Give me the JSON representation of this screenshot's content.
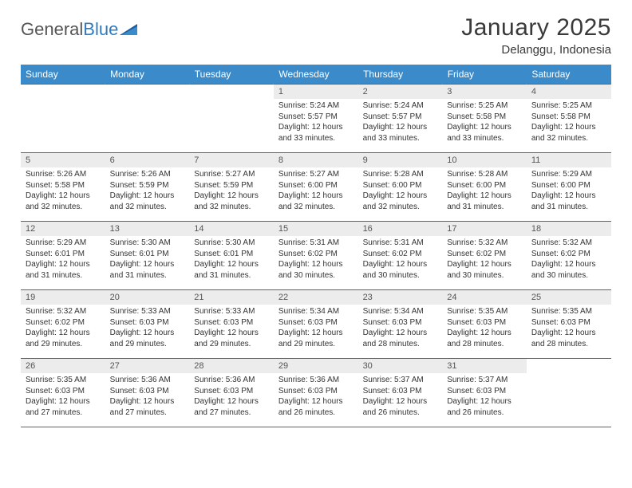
{
  "logo": {
    "word1": "General",
    "word2": "Blue"
  },
  "header": {
    "title": "January 2025",
    "location": "Delanggu, Indonesia"
  },
  "colors": {
    "header_bg": "#3b8bca",
    "header_text": "#ffffff",
    "row_divider": "#2f6fa8",
    "daynum_bg": "#ececec",
    "page_bg": "#ffffff",
    "logo_blue": "#2f7bbf",
    "text": "#333333"
  },
  "typography": {
    "title_fontsize": 30,
    "subtitle_fontsize": 15,
    "dayheader_fontsize": 12,
    "daynum_fontsize": 11,
    "info_fontsize": 10
  },
  "calendar": {
    "type": "table",
    "columns": [
      "Sunday",
      "Monday",
      "Tuesday",
      "Wednesday",
      "Thursday",
      "Friday",
      "Saturday"
    ],
    "start_day_index": 3,
    "days": [
      {
        "n": 1,
        "sunrise": "5:24 AM",
        "sunset": "5:57 PM",
        "daylight": "12 hours and 33 minutes."
      },
      {
        "n": 2,
        "sunrise": "5:24 AM",
        "sunset": "5:57 PM",
        "daylight": "12 hours and 33 minutes."
      },
      {
        "n": 3,
        "sunrise": "5:25 AM",
        "sunset": "5:58 PM",
        "daylight": "12 hours and 33 minutes."
      },
      {
        "n": 4,
        "sunrise": "5:25 AM",
        "sunset": "5:58 PM",
        "daylight": "12 hours and 32 minutes."
      },
      {
        "n": 5,
        "sunrise": "5:26 AM",
        "sunset": "5:58 PM",
        "daylight": "12 hours and 32 minutes."
      },
      {
        "n": 6,
        "sunrise": "5:26 AM",
        "sunset": "5:59 PM",
        "daylight": "12 hours and 32 minutes."
      },
      {
        "n": 7,
        "sunrise": "5:27 AM",
        "sunset": "5:59 PM",
        "daylight": "12 hours and 32 minutes."
      },
      {
        "n": 8,
        "sunrise": "5:27 AM",
        "sunset": "6:00 PM",
        "daylight": "12 hours and 32 minutes."
      },
      {
        "n": 9,
        "sunrise": "5:28 AM",
        "sunset": "6:00 PM",
        "daylight": "12 hours and 32 minutes."
      },
      {
        "n": 10,
        "sunrise": "5:28 AM",
        "sunset": "6:00 PM",
        "daylight": "12 hours and 31 minutes."
      },
      {
        "n": 11,
        "sunrise": "5:29 AM",
        "sunset": "6:00 PM",
        "daylight": "12 hours and 31 minutes."
      },
      {
        "n": 12,
        "sunrise": "5:29 AM",
        "sunset": "6:01 PM",
        "daylight": "12 hours and 31 minutes."
      },
      {
        "n": 13,
        "sunrise": "5:30 AM",
        "sunset": "6:01 PM",
        "daylight": "12 hours and 31 minutes."
      },
      {
        "n": 14,
        "sunrise": "5:30 AM",
        "sunset": "6:01 PM",
        "daylight": "12 hours and 31 minutes."
      },
      {
        "n": 15,
        "sunrise": "5:31 AM",
        "sunset": "6:02 PM",
        "daylight": "12 hours and 30 minutes."
      },
      {
        "n": 16,
        "sunrise": "5:31 AM",
        "sunset": "6:02 PM",
        "daylight": "12 hours and 30 minutes."
      },
      {
        "n": 17,
        "sunrise": "5:32 AM",
        "sunset": "6:02 PM",
        "daylight": "12 hours and 30 minutes."
      },
      {
        "n": 18,
        "sunrise": "5:32 AM",
        "sunset": "6:02 PM",
        "daylight": "12 hours and 30 minutes."
      },
      {
        "n": 19,
        "sunrise": "5:32 AM",
        "sunset": "6:02 PM",
        "daylight": "12 hours and 29 minutes."
      },
      {
        "n": 20,
        "sunrise": "5:33 AM",
        "sunset": "6:03 PM",
        "daylight": "12 hours and 29 minutes."
      },
      {
        "n": 21,
        "sunrise": "5:33 AM",
        "sunset": "6:03 PM",
        "daylight": "12 hours and 29 minutes."
      },
      {
        "n": 22,
        "sunrise": "5:34 AM",
        "sunset": "6:03 PM",
        "daylight": "12 hours and 29 minutes."
      },
      {
        "n": 23,
        "sunrise": "5:34 AM",
        "sunset": "6:03 PM",
        "daylight": "12 hours and 28 minutes."
      },
      {
        "n": 24,
        "sunrise": "5:35 AM",
        "sunset": "6:03 PM",
        "daylight": "12 hours and 28 minutes."
      },
      {
        "n": 25,
        "sunrise": "5:35 AM",
        "sunset": "6:03 PM",
        "daylight": "12 hours and 28 minutes."
      },
      {
        "n": 26,
        "sunrise": "5:35 AM",
        "sunset": "6:03 PM",
        "daylight": "12 hours and 27 minutes."
      },
      {
        "n": 27,
        "sunrise": "5:36 AM",
        "sunset": "6:03 PM",
        "daylight": "12 hours and 27 minutes."
      },
      {
        "n": 28,
        "sunrise": "5:36 AM",
        "sunset": "6:03 PM",
        "daylight": "12 hours and 27 minutes."
      },
      {
        "n": 29,
        "sunrise": "5:36 AM",
        "sunset": "6:03 PM",
        "daylight": "12 hours and 26 minutes."
      },
      {
        "n": 30,
        "sunrise": "5:37 AM",
        "sunset": "6:03 PM",
        "daylight": "12 hours and 26 minutes."
      },
      {
        "n": 31,
        "sunrise": "5:37 AM",
        "sunset": "6:03 PM",
        "daylight": "12 hours and 26 minutes."
      }
    ],
    "labels": {
      "sunrise": "Sunrise:",
      "sunset": "Sunset:",
      "daylight": "Daylight:"
    }
  }
}
